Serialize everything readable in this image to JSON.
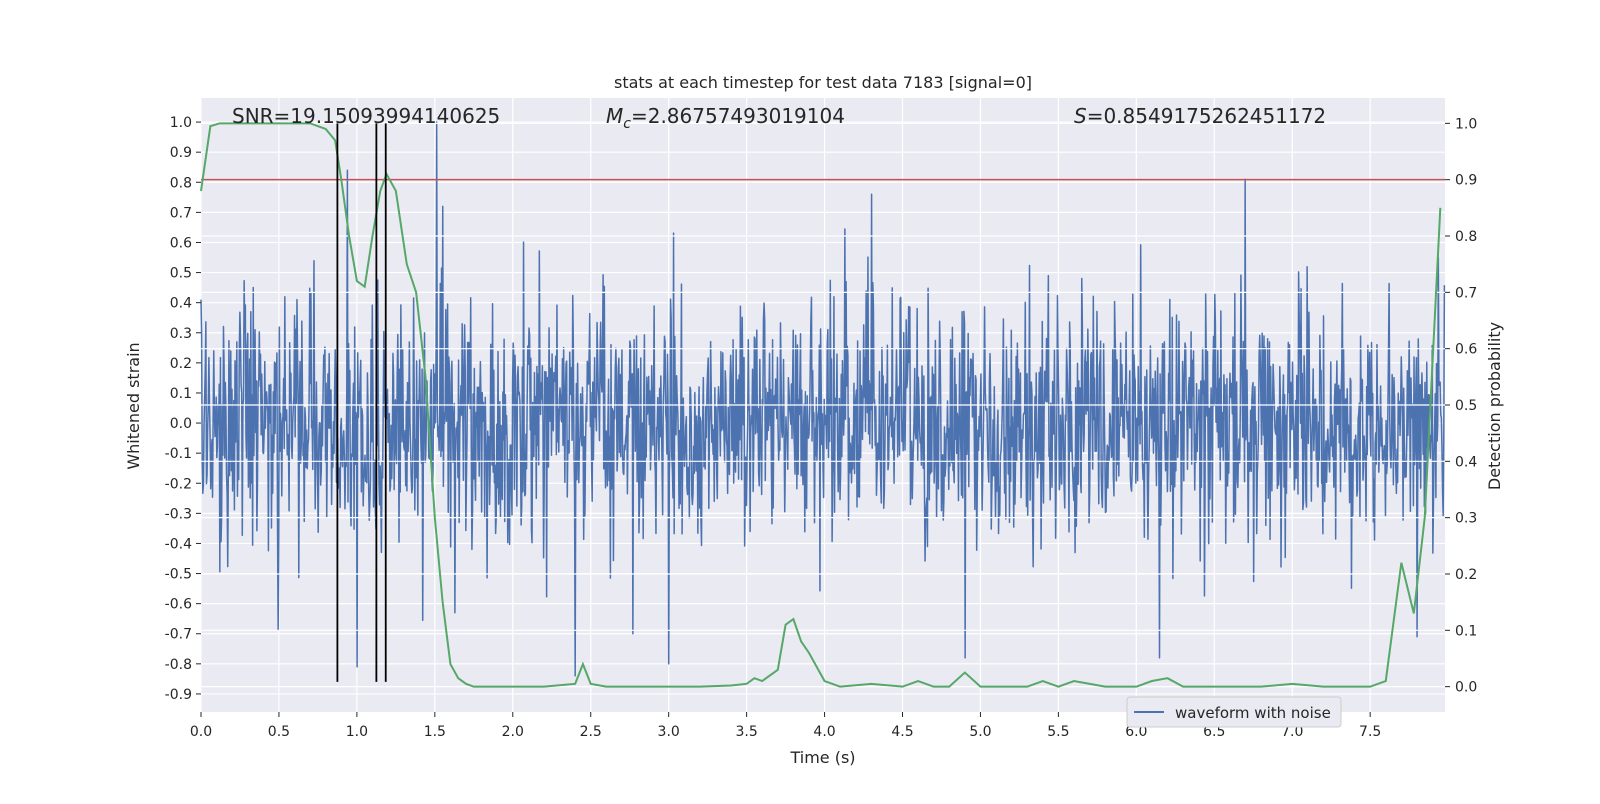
{
  "chart_data": {
    "type": "line",
    "title": "stats at each timestep for test data 7183 [signal=0]",
    "xlabel": "Time (s)",
    "ylabel_left": "Whitened strain",
    "ylabel_right": "Detection probability",
    "xlim": [
      0.0,
      7.98
    ],
    "ylim_left": [
      -0.96,
      1.08
    ],
    "ylim_right": [
      -0.045,
      1.045
    ],
    "x_ticks": [
      "0.0",
      "0.5",
      "1.0",
      "1.5",
      "2.0",
      "2.5",
      "3.0",
      "3.5",
      "4.0",
      "4.5",
      "5.0",
      "5.5",
      "6.0",
      "6.5",
      "7.0",
      "7.5"
    ],
    "x_tick_values": [
      0,
      0.5,
      1,
      1.5,
      2,
      2.5,
      3,
      3.5,
      4,
      4.5,
      5,
      5.5,
      6,
      6.5,
      7,
      7.5
    ],
    "y_ticks_left": [
      "1.0",
      "0.9",
      "0.8",
      "0.7",
      "0.6",
      "0.5",
      "0.4",
      "0.3",
      "0.2",
      "0.1",
      "0.0",
      "-0.1",
      "-0.2",
      "-0.3",
      "-0.4",
      "-0.5",
      "-0.6",
      "-0.7",
      "-0.8",
      "-0.9"
    ],
    "y_tick_values_left": [
      1.0,
      0.9,
      0.8,
      0.7,
      0.6,
      0.5,
      0.4,
      0.3,
      0.2,
      0.1,
      0.0,
      -0.1,
      -0.2,
      -0.3,
      -0.4,
      -0.5,
      -0.6,
      -0.7,
      -0.8,
      -0.9
    ],
    "y_ticks_right": [
      "1.0",
      "0.9",
      "0.8",
      "0.7",
      "0.6",
      "0.5",
      "0.4",
      "0.3",
      "0.2",
      "0.1",
      "0.0"
    ],
    "y_tick_values_right": [
      1.0,
      0.9,
      0.8,
      0.7,
      0.6,
      0.5,
      0.4,
      0.3,
      0.2,
      0.1,
      0.0
    ],
    "annotations": {
      "snr": "SNR=19.15093994140625",
      "mc_symbol": "M",
      "mc_sub": "c",
      "mc_value": "=2.86757493019104",
      "s_symbol": "S",
      "s_value": "=0.8549175262451172"
    },
    "threshold": {
      "value": 0.9,
      "axis": "right",
      "color": "#c44e52"
    },
    "vertical_lines": [
      0.875,
      1.125,
      1.185
    ],
    "waveform": {
      "name": "waveform with noise",
      "color": "#4c72b0",
      "n_samples": 2048,
      "noise_sigma": 0.19,
      "peaks": [
        {
          "t": 1.51,
          "v": 1.0
        },
        {
          "t": 0.94,
          "v": 0.84
        },
        {
          "t": 1.55,
          "v": 0.72
        },
        {
          "t": 6.7,
          "v": 0.81
        },
        {
          "t": 4.3,
          "v": 0.76
        },
        {
          "t": 2.4,
          "v": -0.84
        },
        {
          "t": 1.0,
          "v": -0.81
        },
        {
          "t": 6.15,
          "v": -0.78
        },
        {
          "t": 4.9,
          "v": -0.78
        },
        {
          "t": 3.0,
          "v": -0.8
        },
        {
          "t": 7.8,
          "v": -0.71
        }
      ]
    },
    "probability": {
      "name": "detection probability",
      "color": "#55a868",
      "x": [
        0.0,
        0.06,
        0.12,
        0.2,
        0.3,
        0.4,
        0.5,
        0.6,
        0.7,
        0.8,
        0.86,
        0.9,
        0.95,
        1.0,
        1.05,
        1.1,
        1.15,
        1.19,
        1.25,
        1.32,
        1.38,
        1.44,
        1.5,
        1.55,
        1.6,
        1.65,
        1.7,
        1.75,
        1.85,
        2.0,
        2.2,
        2.4,
        2.45,
        2.5,
        2.6,
        2.8,
        3.0,
        3.2,
        3.4,
        3.5,
        3.55,
        3.6,
        3.7,
        3.75,
        3.8,
        3.85,
        3.9,
        4.0,
        4.1,
        4.3,
        4.5,
        4.6,
        4.7,
        4.8,
        4.9,
        5.0,
        5.2,
        5.3,
        5.4,
        5.5,
        5.6,
        5.8,
        6.0,
        6.1,
        6.2,
        6.3,
        6.5,
        6.8,
        7.0,
        7.2,
        7.5,
        7.6,
        7.7,
        7.78,
        7.85,
        7.95
      ],
      "y": [
        0.88,
        0.995,
        1.0,
        1.0,
        1.0,
        1.0,
        1.0,
        1.0,
        1.0,
        0.99,
        0.97,
        0.9,
        0.8,
        0.72,
        0.71,
        0.8,
        0.88,
        0.91,
        0.88,
        0.75,
        0.7,
        0.55,
        0.3,
        0.15,
        0.04,
        0.015,
        0.005,
        0.0,
        0.0,
        0.0,
        0.0,
        0.005,
        0.04,
        0.005,
        0.0,
        0.0,
        0.0,
        0.0,
        0.002,
        0.005,
        0.015,
        0.01,
        0.03,
        0.11,
        0.12,
        0.08,
        0.06,
        0.01,
        0.0,
        0.005,
        0.0,
        0.01,
        0.0,
        0.0,
        0.025,
        0.0,
        0.0,
        0.0,
        0.01,
        0.0,
        0.01,
        0.0,
        0.0,
        0.01,
        0.015,
        0.0,
        0.0,
        0.0,
        0.005,
        0.0,
        0.0,
        0.01,
        0.22,
        0.13,
        0.3,
        0.85
      ]
    },
    "legend": {
      "label": "waveform with noise",
      "position": "bottom-right"
    },
    "grid": true
  }
}
